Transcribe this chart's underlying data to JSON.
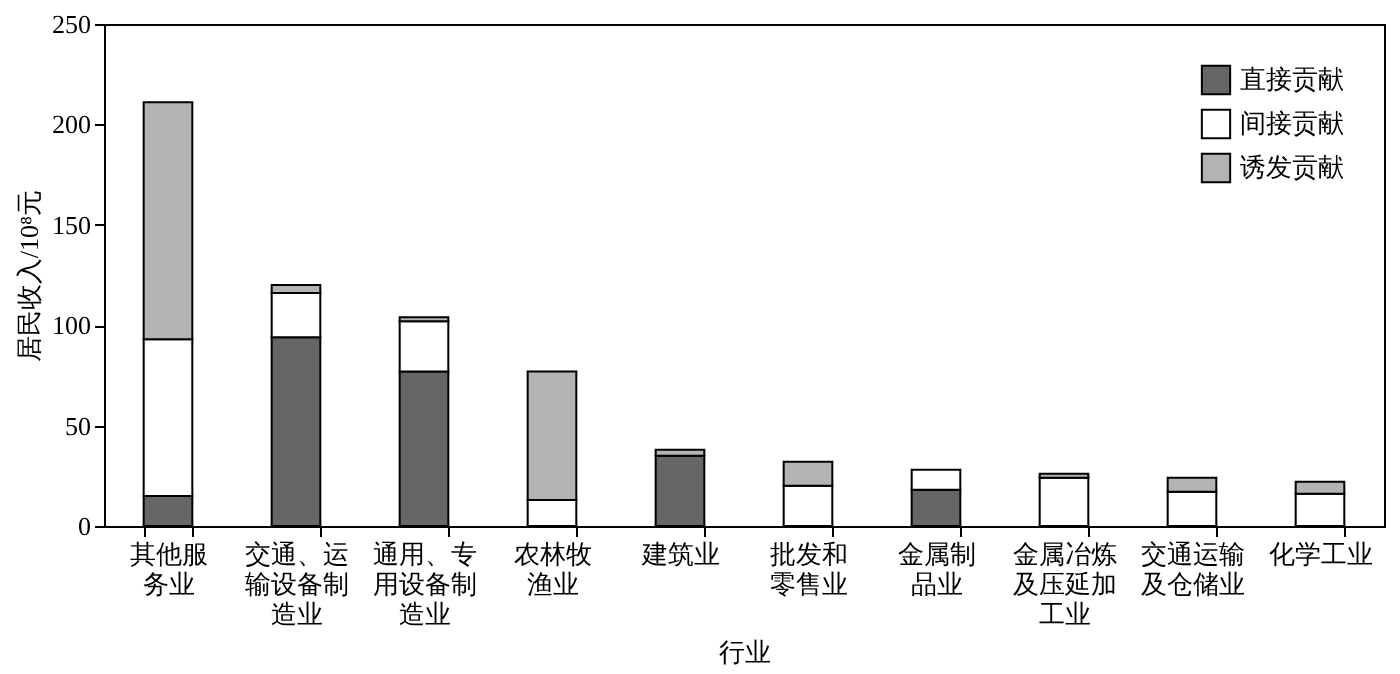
{
  "chart_data": {
    "type": "bar",
    "stacked": true,
    "xlabel": "行业",
    "ylabel": "居民收入/10⁸元",
    "categories": [
      "其他服务业",
      "交通、运输设备制造业",
      "通用、专用设备制造业",
      "农林牧渔业",
      "建筑业",
      "批发和零售业",
      "金属制品业",
      "金属冶炼及压延加工业",
      "交通运输及仓储业",
      "化学工业"
    ],
    "series": [
      {
        "name": "直接贡献",
        "color": "#666666",
        "values": [
          15,
          94,
          77,
          null,
          35,
          null,
          18,
          null,
          null,
          null
        ]
      },
      {
        "name": "间接贡献",
        "color": "#ffffff",
        "values": [
          78,
          22,
          25,
          13,
          null,
          20,
          10,
          24,
          17,
          16
        ]
      },
      {
        "name": "诱发贡献",
        "color": "#b3b3b3",
        "values": [
          118,
          4,
          2,
          64,
          3,
          12,
          null,
          2,
          7,
          6
        ]
      }
    ],
    "ylim": [
      0,
      250
    ],
    "yticks": [
      0,
      50,
      100,
      150,
      200,
      250
    ],
    "grid": false,
    "legend": "top right"
  }
}
